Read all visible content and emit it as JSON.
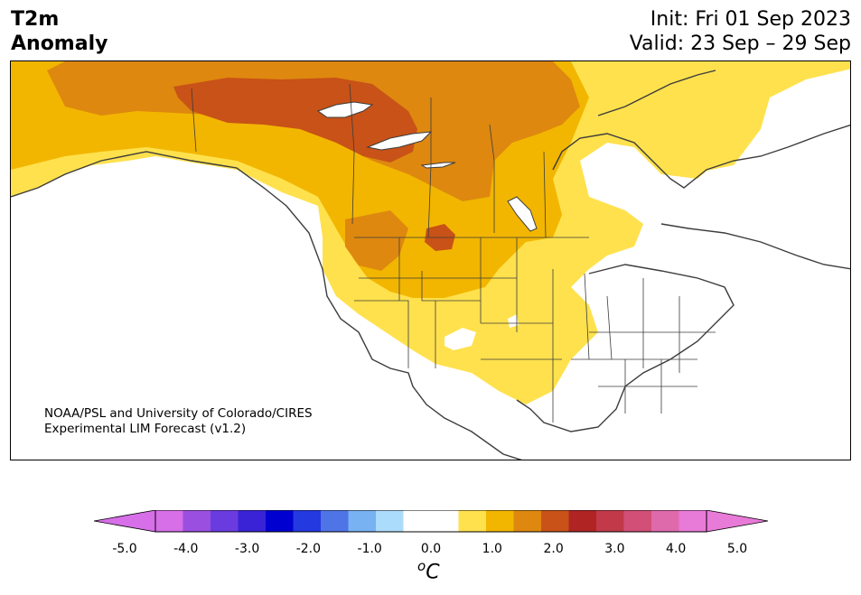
{
  "title": {
    "left_line1": "T2m",
    "left_line2": "Anomaly",
    "right_line1": "Init: Fri 01 Sep 2023",
    "right_line2": "Valid: 23 Sep – 29 Sep"
  },
  "credit": {
    "line1": "NOAA/PSL and University of Colorado/CIRES",
    "line2": "Experimental LIM Forecast (v1.2)"
  },
  "colorbar": {
    "unit_sup": "o",
    "unit_base": "C",
    "ticks": [
      "-5.0",
      "-4.0",
      "-3.0",
      "-2.0",
      "-1.0",
      "0.0",
      "1.0",
      "2.0",
      "3.0",
      "4.0",
      "5.0"
    ],
    "colors": {
      "extend_low": "#d66fe8",
      "bins": [
        "#d66fe8",
        "#9b4fe0",
        "#6a3ce0",
        "#3a22d6",
        "#0000d0",
        "#2439e0",
        "#4f74e6",
        "#79b2f2",
        "#acdcfb",
        "#ffffff",
        "#ffffff",
        "#ffe14d",
        "#f2b600",
        "#de880f",
        "#c85217",
        "#b02424",
        "#c23a4a",
        "#d24f77",
        "#de6aab",
        "#e87ad8"
      ],
      "extend_high": "#e87ad8"
    }
  },
  "map": {
    "fill_colors": {
      "anomaly_1_to_1_5": "#ffe14d",
      "anomaly_1_5_to_2": "#f2b600",
      "anomaly_2_to_2_5": "#de880f",
      "anomaly_2_5_to_3": "#c85217",
      "land_outline": "#3c3c3c"
    }
  }
}
